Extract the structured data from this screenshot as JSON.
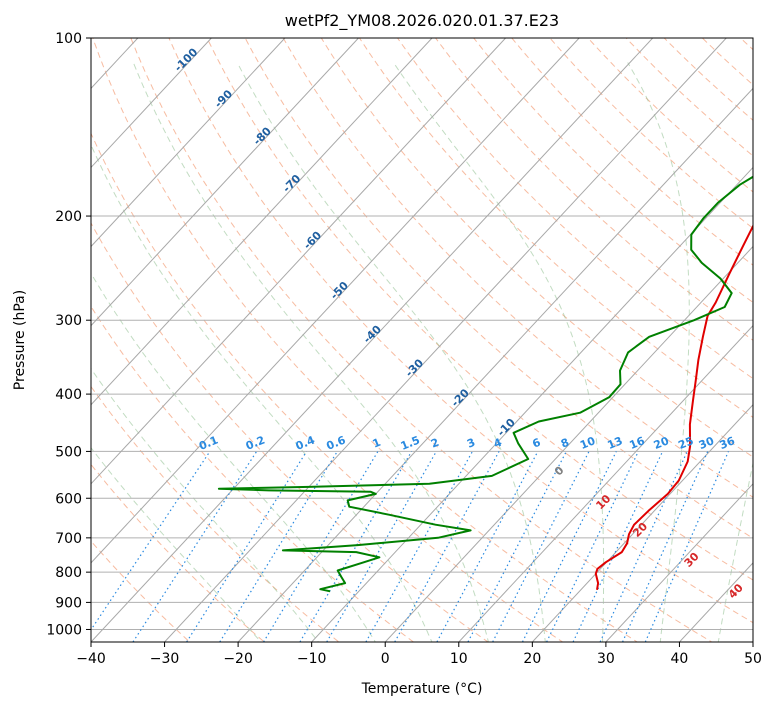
{
  "chart_data": {
    "type": "line",
    "title": "wetPf2_YM08.2026.020.01.37.E23",
    "xlabel": "Temperature (°C)",
    "ylabel": "Pressure (hPa)",
    "xlim": [
      -40,
      50
    ],
    "ylim": [
      1050,
      100
    ],
    "y_scale": "log",
    "grid": true,
    "x_ticks": [
      -40,
      -30,
      -20,
      -10,
      0,
      10,
      20,
      30,
      40,
      50
    ],
    "y_ticks": [
      100,
      200,
      300,
      400,
      500,
      600,
      700,
      800,
      900,
      1000
    ],
    "x_tick_labels": [
      "−40",
      "−30",
      "−20",
      "−10",
      "0",
      "10",
      "20",
      "30",
      "40",
      "50"
    ],
    "y_tick_labels": [
      "100",
      "200",
      "300",
      "400",
      "500",
      "600",
      "700",
      "800",
      "900",
      "1000"
    ],
    "series": [
      {
        "color": "#e00000",
        "points": [
          [
            22.2,
            857
          ],
          [
            21.5,
            835
          ],
          [
            20.0,
            805
          ],
          [
            19.6,
            790
          ],
          [
            19.9,
            770
          ],
          [
            20.8,
            740
          ],
          [
            20.4,
            715
          ],
          [
            19.5,
            690
          ],
          [
            19.0,
            665
          ],
          [
            19.2,
            630
          ],
          [
            19.7,
            590
          ],
          [
            19.5,
            560
          ],
          [
            18.3,
            520
          ],
          [
            16.7,
            490
          ],
          [
            13.9,
            450
          ],
          [
            11.3,
            410
          ],
          [
            9.2,
            380
          ],
          [
            6.9,
            350
          ],
          [
            4.6,
            320
          ],
          [
            2.6,
            295
          ],
          [
            2.0,
            280
          ],
          [
            0.2,
            250
          ],
          [
            -1.4,
            225
          ],
          [
            -2.8,
            205
          ],
          [
            -3.6,
            190
          ],
          [
            -4.2,
            175
          ],
          [
            -4.8,
            165
          ],
          [
            -5.3,
            150
          ],
          [
            -6.6,
            138
          ],
          [
            -7.8,
            130
          ],
          [
            -8.9,
            121
          ],
          [
            -10.8,
            113
          ],
          [
            -12.8,
            106
          ],
          [
            -14.5,
            100
          ]
        ]
      },
      {
        "color": "#008000",
        "points": [
          [
            -13.9,
            862
          ],
          [
            -15.5,
            855
          ],
          [
            -12.9,
            835
          ],
          [
            -14.2,
            815
          ],
          [
            -15.5,
            795
          ],
          [
            -13.0,
            770
          ],
          [
            -11.5,
            755
          ],
          [
            -15.3,
            740
          ],
          [
            -25.5,
            735
          ],
          [
            -16.0,
            720
          ],
          [
            -6.0,
            700
          ],
          [
            -2.5,
            680
          ],
          [
            -8.0,
            665
          ],
          [
            -15.5,
            640
          ],
          [
            -22.0,
            620
          ],
          [
            -23.0,
            605
          ],
          [
            -20.0,
            590
          ],
          [
            -21.0,
            585
          ],
          [
            -35.0,
            582
          ],
          [
            -42.0,
            578
          ],
          [
            -30.0,
            574
          ],
          [
            -14.0,
            567
          ],
          [
            -6.5,
            550
          ],
          [
            -3.7,
            515
          ],
          [
            -7.0,
            485
          ],
          [
            -9.0,
            465
          ],
          [
            -7.0,
            445
          ],
          [
            -2.5,
            430
          ],
          [
            -0.5,
            405
          ],
          [
            -0.6,
            385
          ],
          [
            -2.4,
            365
          ],
          [
            -3.6,
            340
          ],
          [
            -2.7,
            320
          ],
          [
            1.3,
            300
          ],
          [
            3.8,
            285
          ],
          [
            3.0,
            270
          ],
          [
            -0.4,
            255
          ],
          [
            -4.9,
            240
          ],
          [
            -8.0,
            228
          ],
          [
            -9.9,
            215
          ],
          [
            -10.3,
            202
          ],
          [
            -10.3,
            190
          ],
          [
            -9.6,
            177
          ],
          [
            -7.8,
            165
          ],
          [
            -5.9,
            155
          ],
          [
            -5.2,
            147
          ],
          [
            -7.2,
            142
          ],
          [
            -8.8,
            136
          ],
          [
            -9.3,
            128
          ],
          [
            -9.3,
            122
          ],
          [
            -9.7,
            115
          ],
          [
            -10.0,
            108
          ],
          [
            -10.8,
            101
          ],
          [
            -11.1,
            100
          ]
        ]
      }
    ],
    "dry_adiabat_labels": [
      {
        "text": "-100",
        "t": -100
      },
      {
        "text": "-90",
        "t": -90
      },
      {
        "text": "-80",
        "t": -80
      },
      {
        "text": "-70",
        "t": -70
      },
      {
        "text": "-60",
        "t": -60
      },
      {
        "text": "-50",
        "t": -50
      },
      {
        "text": "-40",
        "t": -40
      },
      {
        "text": "-30",
        "t": -30
      },
      {
        "text": "-20",
        "t": -20
      },
      {
        "text": "-10",
        "t": -10
      }
    ],
    "moist_adiabat_labels": [
      {
        "text": "0",
        "t": 0
      },
      {
        "text": "10",
        "t": 10
      },
      {
        "text": "20",
        "t": 20
      },
      {
        "text": "30",
        "t": 30
      },
      {
        "text": "40",
        "t": 40
      }
    ],
    "mixing_ratio_labels": [
      "0.1",
      "0.2",
      "0.4",
      "0.6",
      "1",
      "1.5",
      "2",
      "3",
      "4",
      "6",
      "8",
      "10",
      "13",
      "16",
      "20",
      "25",
      "30",
      "36"
    ]
  }
}
